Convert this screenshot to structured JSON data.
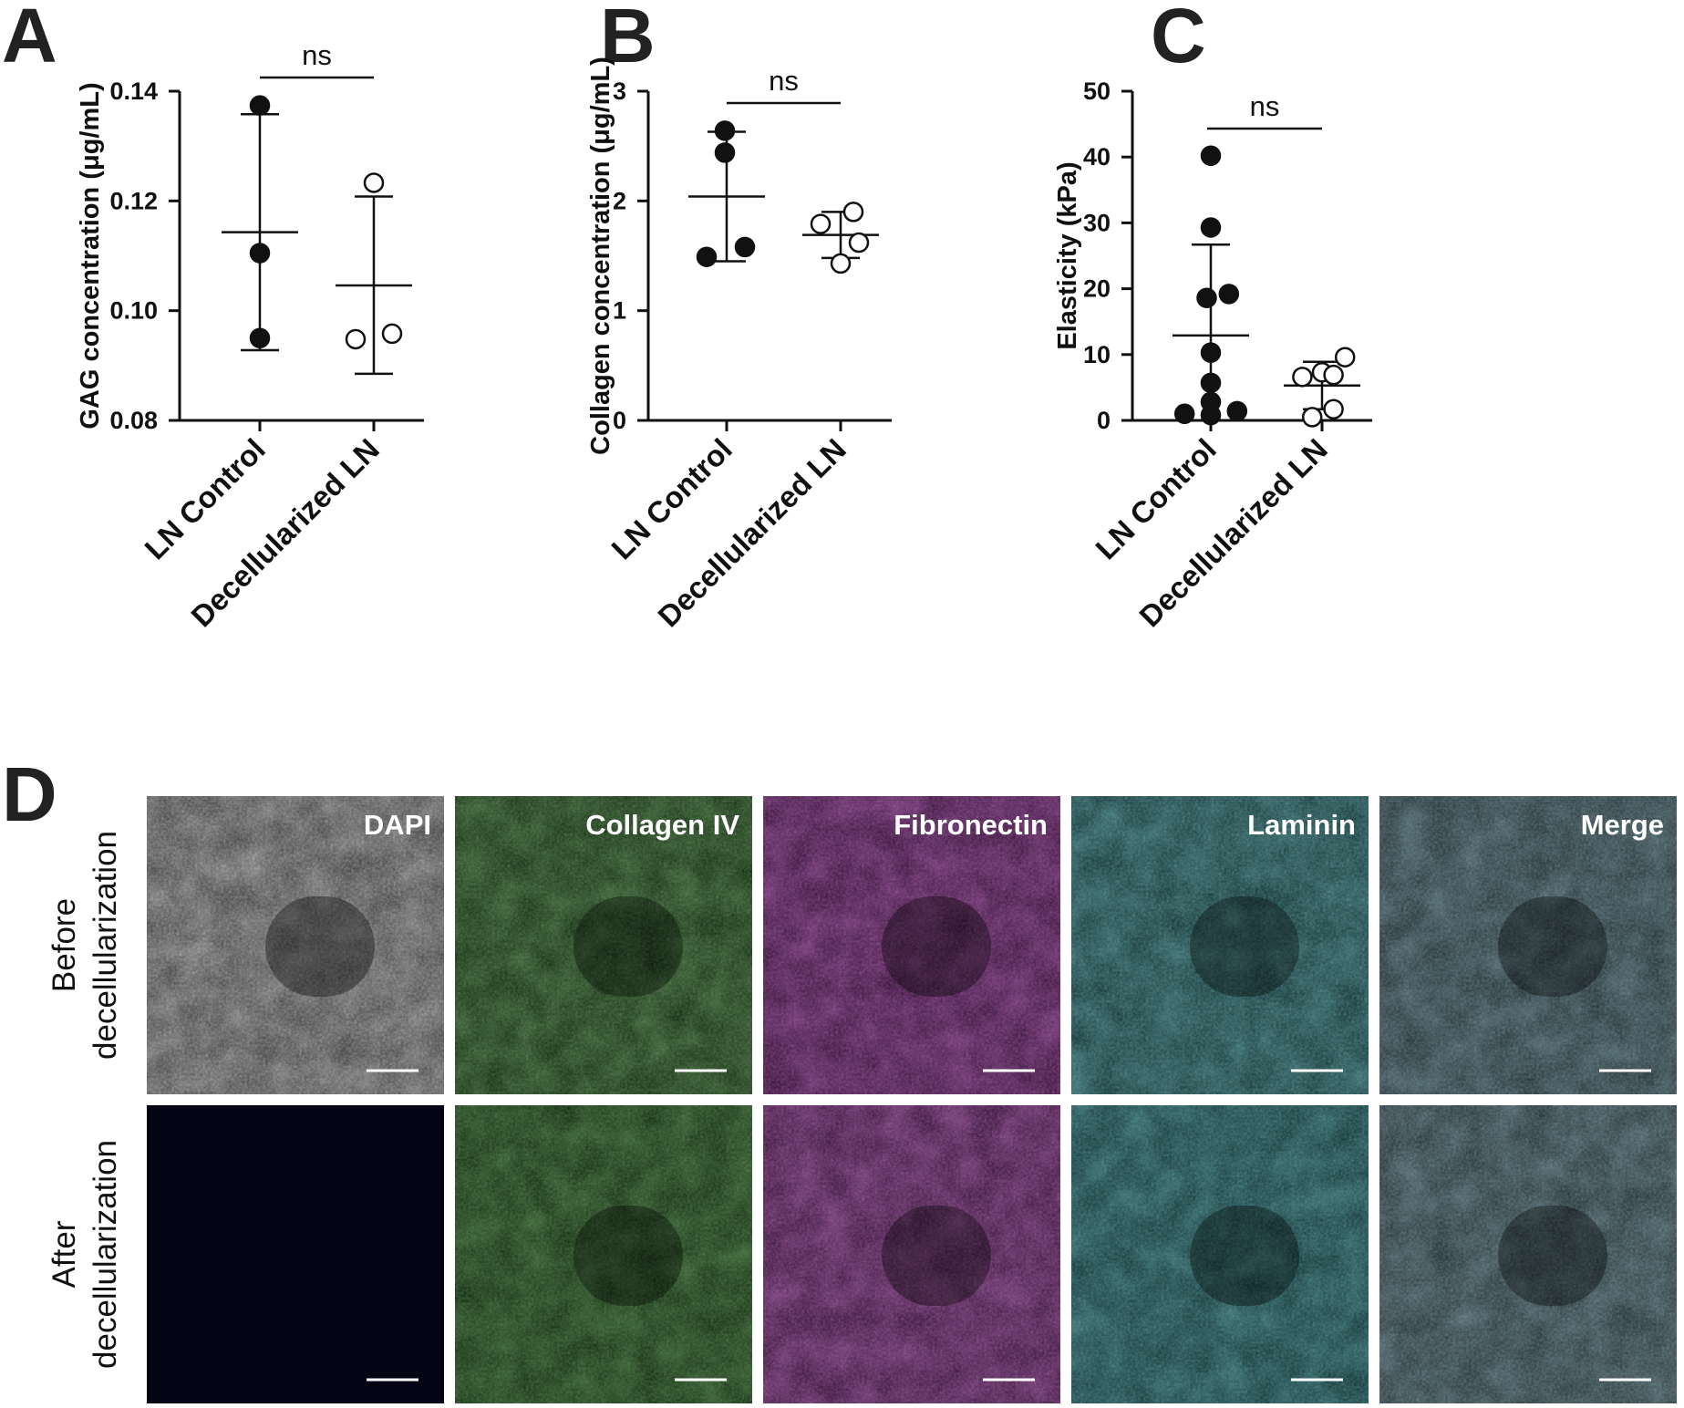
{
  "colors": {
    "axis": "#111111",
    "filled_marker": "#111111",
    "open_marker_fill": "#ffffff",
    "dapi": "#ffffff",
    "collagen": "#3aa12a",
    "fibronectin": "#d23ad8",
    "laminin": "#36c4c8",
    "merge": "#7fb8c8",
    "scale_bar": "#ffffff"
  },
  "panels": {
    "A": {
      "letter": "A"
    },
    "B": {
      "letter": "B"
    },
    "C": {
      "letter": "C"
    },
    "D": {
      "letter": "D"
    }
  },
  "chart_data": [
    {
      "panel": "A",
      "type": "scatter",
      "ylabel": "GAG concentration (μg/mL)",
      "categories": [
        "LN Control",
        "Decellularized LN"
      ],
      "ylim": [
        0.08,
        0.14
      ],
      "yticks": [
        0.08,
        0.1,
        0.12,
        0.14
      ],
      "ytick_labels": [
        "0.08",
        "0.10",
        "0.12",
        "0.14"
      ],
      "significance": "ns",
      "series": [
        {
          "category": "LN Control",
          "marker": "filled",
          "points": [
            0.1374,
            0.1105,
            0.095
          ],
          "mean": 0.1143,
          "sd_low": 0.0928,
          "sd_high": 0.1358
        },
        {
          "category": "Decellularized LN",
          "marker": "open",
          "points": [
            0.1233,
            0.0948,
            0.0958
          ],
          "mean": 0.1046,
          "sd_low": 0.0885,
          "sd_high": 0.1208
        }
      ]
    },
    {
      "panel": "B",
      "type": "scatter",
      "ylabel": "Collagen concentration (μg/mL)",
      "categories": [
        "LN Control",
        "Decellularized LN"
      ],
      "ylim": [
        0,
        3
      ],
      "yticks": [
        0,
        1,
        2,
        3
      ],
      "ytick_labels": [
        "0",
        "1",
        "2",
        "3"
      ],
      "significance": "ns",
      "series": [
        {
          "category": "LN Control",
          "marker": "filled",
          "points": [
            2.64,
            2.44,
            1.58,
            1.49
          ],
          "mean": 2.04,
          "sd_low": 1.45,
          "sd_high": 2.63
        },
        {
          "category": "Decellularized LN",
          "marker": "open",
          "points": [
            1.9,
            1.79,
            1.62,
            1.43
          ],
          "mean": 1.69,
          "sd_low": 1.48,
          "sd_high": 1.9
        }
      ]
    },
    {
      "panel": "C",
      "type": "scatter",
      "ylabel": "Elasticity (kPa)",
      "categories": [
        "LN Control",
        "Decellularized LN"
      ],
      "ylim": [
        0,
        50
      ],
      "yticks": [
        0,
        10,
        20,
        30,
        40,
        50
      ],
      "ytick_labels": [
        "0",
        "10",
        "20",
        "30",
        "40",
        "50"
      ],
      "significance": "ns",
      "series": [
        {
          "category": "LN Control",
          "marker": "filled",
          "points": [
            40.2,
            29.3,
            19.2,
            18.6,
            10.3,
            5.7,
            2.8,
            1.4,
            1.0,
            0.8
          ],
          "jitter": [
            0.0,
            0.0,
            0.22,
            -0.05,
            0.0,
            0.0,
            0.0,
            0.32,
            -0.32,
            0.0
          ],
          "mean": 12.9,
          "sd_low": 0.0,
          "sd_high": 26.7
        },
        {
          "category": "Decellularized LN",
          "marker": "open",
          "points": [
            9.6,
            7.3,
            6.9,
            6.6,
            1.7,
            0.5
          ],
          "jitter": [
            0.28,
            0.0,
            0.14,
            -0.24,
            0.14,
            -0.12
          ],
          "mean": 5.3,
          "sd_low": 1.7,
          "sd_high": 8.9
        }
      ]
    }
  ],
  "microscopy": {
    "channels": [
      "DAPI",
      "Collagen IV",
      "Fibronectin",
      "Laminin",
      "Merge"
    ],
    "rows": [
      {
        "line1": "Before",
        "line2": "decellularization"
      },
      {
        "line1": "After",
        "line2": "decellularization"
      }
    ]
  }
}
